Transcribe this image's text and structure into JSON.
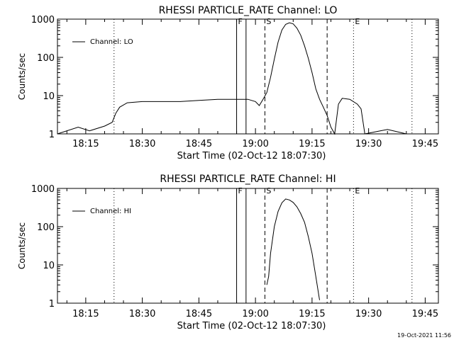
{
  "chart_data": [
    {
      "type": "line",
      "title": "RHESSI PARTICLE_RATE Channel: LO",
      "xlabel": "Start Time (02-Oct-12 18:07:30)",
      "ylabel": "Counts/sec",
      "yscale": "log",
      "xlim": [
        "18:07:30",
        "19:48:30"
      ],
      "ylim": [
        1,
        1000
      ],
      "x_ticks": [
        "18:15",
        "18:30",
        "18:45",
        "19:00",
        "19:15",
        "19:30",
        "19:45"
      ],
      "y_ticks": [
        "1",
        "10",
        "100",
        "1000"
      ],
      "legend": "Channel: LO",
      "legend_position": "top-left",
      "markers": [
        {
          "label": "",
          "time": "18:22:30",
          "style": "dotted"
        },
        {
          "label": "F",
          "time": "18:55:00",
          "style": "solid"
        },
        {
          "label": "",
          "time": "18:57:30",
          "style": "solid"
        },
        {
          "label": "S",
          "time": "19:02:30",
          "style": "dashed"
        },
        {
          "label": "",
          "time": "19:19:00",
          "style": "dashed"
        },
        {
          "label": "E",
          "time": "19:26:00",
          "style": "dotted"
        },
        {
          "label": "",
          "time": "19:41:30",
          "style": "dotted"
        }
      ],
      "series": [
        {
          "name": "Channel: LO",
          "time": [
            "18:07:30",
            "18:13:00",
            "18:16:00",
            "18:20:00",
            "18:22:00",
            "18:23:00",
            "18:24:00",
            "18:26:00",
            "18:30:00",
            "18:35:00",
            "18:40:00",
            "18:45:00",
            "18:50:00",
            "18:55:00",
            "18:58:00",
            "19:00:00",
            "19:01:00",
            "19:02:00",
            "19:03:00",
            "19:04:00",
            "19:05:00",
            "19:06:00",
            "19:07:00",
            "19:08:00",
            "19:09:00",
            "19:10:00",
            "19:11:00",
            "19:12:00",
            "19:13:00",
            "19:14:00",
            "19:15:00",
            "19:16:00",
            "19:17:00",
            "19:18:00",
            "19:19:00",
            "19:20:00",
            "19:21:00",
            "19:22:00",
            "19:23:00",
            "19:25:00",
            "19:27:00",
            "19:28:00",
            "19:29:00",
            "19:35:00",
            "19:40:00",
            "19:45:00",
            "19:48:30"
          ],
          "values": [
            1.0,
            1.5,
            1.2,
            1.6,
            2.0,
            3.5,
            5.0,
            6.5,
            7.0,
            7.0,
            7.0,
            7.5,
            8.0,
            8.0,
            8.0,
            7.0,
            5.5,
            8.0,
            12,
            30,
            90,
            250,
            520,
            730,
            800,
            750,
            580,
            380,
            200,
            95,
            40,
            15,
            8,
            5,
            3,
            1.5,
            1.0,
            6.0,
            8.5,
            8.0,
            6.0,
            4.5,
            1.0,
            1.3,
            1.0,
            1.0,
            1.0
          ]
        }
      ]
    },
    {
      "type": "line",
      "title": "RHESSI PARTICLE_RATE Channel: HI",
      "xlabel": "Start Time (02-Oct-12 18:07:30)",
      "ylabel": "Counts/sec",
      "yscale": "log",
      "xlim": [
        "18:07:30",
        "19:48:30"
      ],
      "ylim": [
        1,
        1000
      ],
      "x_ticks": [
        "18:15",
        "18:30",
        "18:45",
        "19:00",
        "19:15",
        "19:30",
        "19:45"
      ],
      "y_ticks": [
        "1",
        "10",
        "100",
        "1000"
      ],
      "legend": "Channel: HI",
      "legend_position": "top-left",
      "markers": [
        {
          "label": "",
          "time": "18:22:30",
          "style": "dotted"
        },
        {
          "label": "F",
          "time": "18:55:00",
          "style": "solid"
        },
        {
          "label": "",
          "time": "18:57:30",
          "style": "solid"
        },
        {
          "label": "S",
          "time": "19:02:30",
          "style": "dashed"
        },
        {
          "label": "",
          "time": "19:19:00",
          "style": "dashed"
        },
        {
          "label": "E",
          "time": "19:26:00",
          "style": "dotted"
        },
        {
          "label": "",
          "time": "19:41:30",
          "style": "dotted"
        }
      ],
      "series": [
        {
          "name": "Channel: HI",
          "time": [
            "19:03:00",
            "19:03:30",
            "19:04:00",
            "19:05:00",
            "19:06:00",
            "19:07:00",
            "19:08:00",
            "19:09:00",
            "19:10:00",
            "19:11:00",
            "19:12:00",
            "19:13:00",
            "19:14:00",
            "19:15:00",
            "19:16:00",
            "19:17:00"
          ],
          "values": [
            3,
            5,
            20,
            100,
            250,
            420,
            530,
            500,
            430,
            330,
            220,
            130,
            55,
            20,
            5,
            1.2
          ]
        }
      ]
    }
  ],
  "footer": {
    "timestamp": "19-Oct-2021 11:56"
  },
  "colors": {
    "background": "#ffffff",
    "foreground": "#000000"
  }
}
